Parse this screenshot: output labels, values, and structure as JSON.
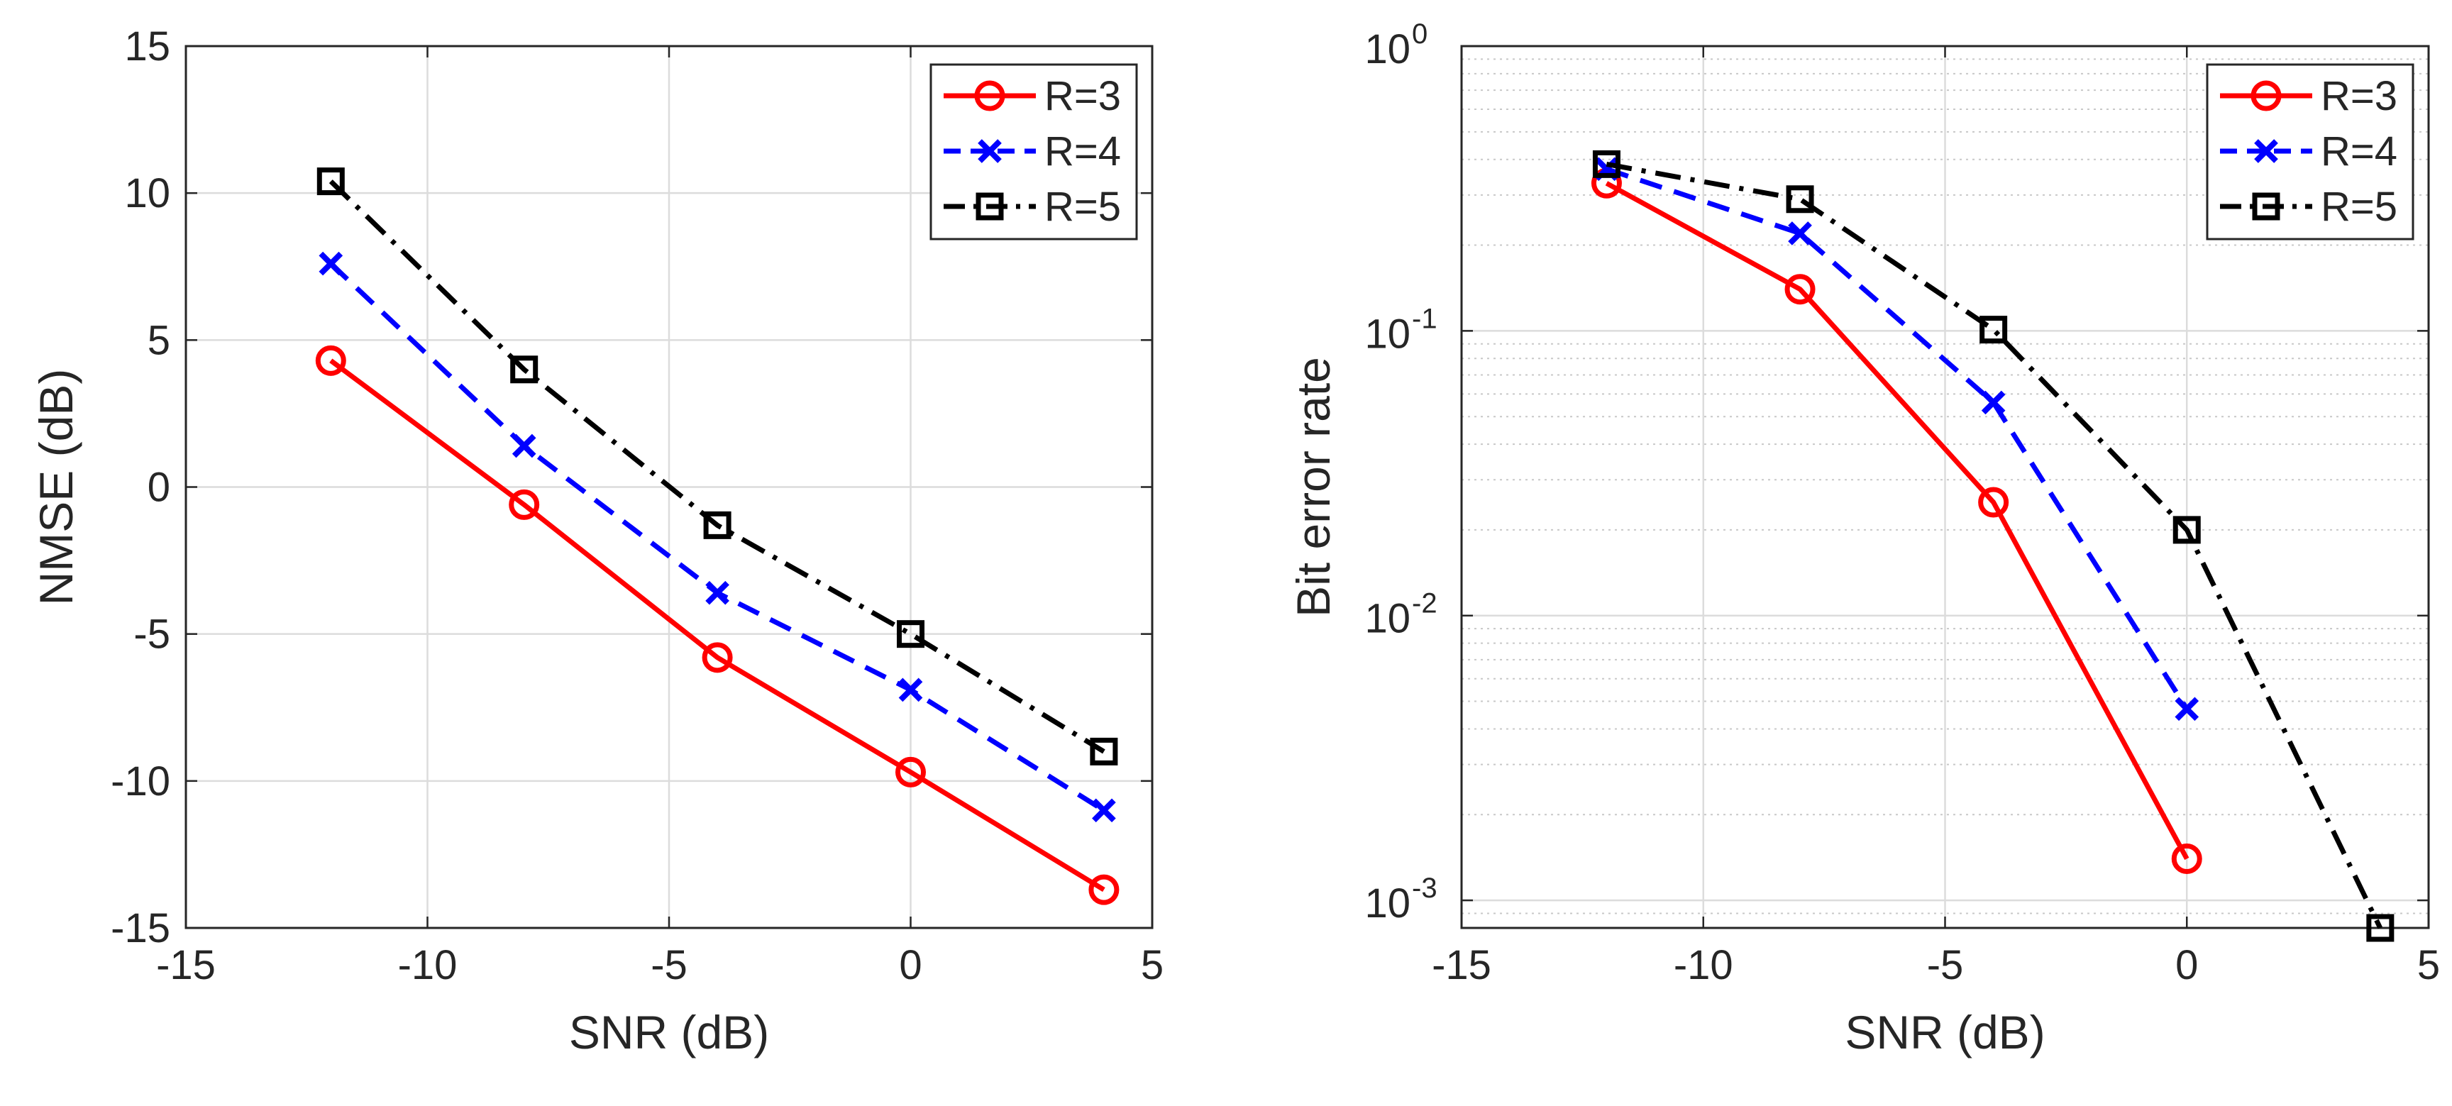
{
  "chart_data": [
    {
      "type": "line",
      "title": "",
      "xlabel": "SNR (dB)",
      "ylabel": "NMSE (dB)",
      "xscale": "linear",
      "yscale": "linear",
      "xlim": [
        -15,
        5
      ],
      "ylim": [
        -15,
        15
      ],
      "xticks": [
        -15,
        -10,
        -5,
        0,
        5
      ],
      "yticks": [
        -15,
        -10,
        -5,
        0,
        5,
        10,
        15
      ],
      "xtick_labels": [
        "-15",
        "-10",
        "-5",
        "0",
        "5"
      ],
      "ytick_labels": [
        "-15",
        "-10",
        "-5",
        "0",
        "5",
        "10",
        "15"
      ],
      "grid": true,
      "legend_position": "top-right",
      "x": [
        -12,
        -8,
        -4,
        0,
        4
      ],
      "series": [
        {
          "name": "R=3",
          "color": "#ff0000",
          "line": "solid",
          "marker": "circle",
          "values": [
            4.3,
            -0.6,
            -5.8,
            -9.7,
            -13.7
          ]
        },
        {
          "name": "R=4",
          "color": "#0000ff",
          "line": "dashed",
          "marker": "x",
          "values": [
            7.6,
            1.4,
            -3.6,
            -6.9,
            -11.0
          ]
        },
        {
          "name": "R=5",
          "color": "#000000",
          "line": "dashdot",
          "marker": "square",
          "values": [
            10.4,
            4.0,
            -1.3,
            -5.0,
            -9.0
          ]
        }
      ]
    },
    {
      "type": "line",
      "title": "",
      "xlabel": "SNR (dB)",
      "ylabel": "Bit error rate",
      "xscale": "linear",
      "yscale": "log",
      "xlim": [
        -15,
        5
      ],
      "ylim": [
        0.0008,
        1
      ],
      "xticks": [
        -15,
        -10,
        -5,
        0,
        5
      ],
      "yticks": [
        0.001,
        0.01,
        0.1,
        1
      ],
      "xtick_labels": [
        "-15",
        "-10",
        "-5",
        "0",
        "5"
      ],
      "ytick_labels": [
        {
          "base": "10",
          "exp": "-3"
        },
        {
          "base": "10",
          "exp": "-2"
        },
        {
          "base": "10",
          "exp": "-1"
        },
        {
          "base": "10",
          "exp": "0"
        }
      ],
      "grid": true,
      "minor_grid": true,
      "legend_position": "top-right",
      "series": [
        {
          "name": "R=3",
          "color": "#ff0000",
          "line": "solid",
          "marker": "circle",
          "x": [
            -12,
            -8,
            -4,
            0
          ],
          "values": [
            0.33,
            0.14,
            0.025,
            0.0014
          ]
        },
        {
          "name": "R=4",
          "color": "#0000ff",
          "line": "dashed",
          "marker": "x",
          "x": [
            -12,
            -8,
            -4,
            0
          ],
          "values": [
            0.37,
            0.22,
            0.056,
            0.0047
          ]
        },
        {
          "name": "R=5",
          "color": "#000000",
          "line": "dashdot",
          "marker": "square",
          "x": [
            -12,
            -8,
            -4,
            0,
            4
          ],
          "values": [
            0.385,
            0.29,
            0.101,
            0.02,
            0.0008
          ]
        }
      ]
    }
  ]
}
